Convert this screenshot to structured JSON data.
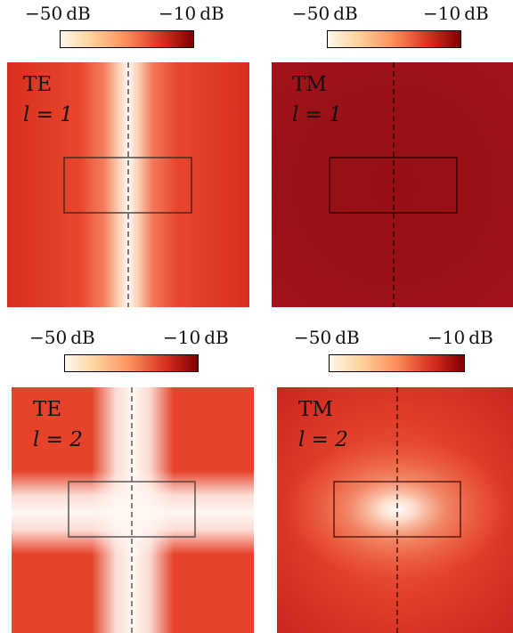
{
  "colorbars": [
    {
      "min_label": "−50 dB",
      "max_label": "−10 dB"
    },
    {
      "min_label": "−50 dB",
      "max_label": "−10 dB"
    },
    {
      "min_label": "−50 dB",
      "max_label": "−10 dB"
    },
    {
      "min_label": "−50 dB",
      "max_label": "−10 dB"
    }
  ],
  "colormap": {
    "low_color": "#fff7ec",
    "high_color": "#7f0000",
    "stops": [
      "#fff7ec",
      "#fdd49e",
      "#fc8d59",
      "#d7301f",
      "#7f0000"
    ]
  },
  "panels": [
    {
      "mode": "TE",
      "l_text": "l = 1"
    },
    {
      "mode": "TM",
      "l_text": "l = 1"
    },
    {
      "mode": "TE",
      "l_text": "l = 2"
    },
    {
      "mode": "TM",
      "l_text": "l = 2"
    }
  ]
}
